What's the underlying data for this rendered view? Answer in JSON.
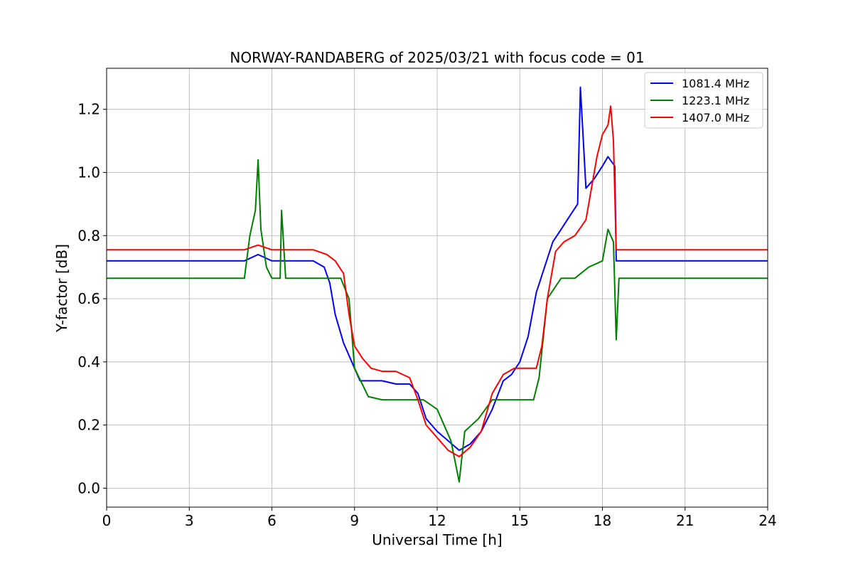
{
  "chart_data": {
    "type": "line",
    "title": "NORWAY-RANDABERG of 2025/03/21 with focus code = 01",
    "xlabel": "Universal Time [h]",
    "ylabel": "Y-factor [dB]",
    "xlim": [
      0,
      24
    ],
    "ylim": [
      -0.06,
      1.33
    ],
    "xticks": [
      0,
      3,
      6,
      9,
      12,
      15,
      18,
      21,
      24
    ],
    "xtick_labels": [
      "0",
      "3",
      "6",
      "9",
      "12",
      "15",
      "18",
      "21",
      "24"
    ],
    "yticks": [
      0.0,
      0.2,
      0.4,
      0.6,
      0.8,
      1.0,
      1.2
    ],
    "ytick_labels": [
      "0.0",
      "0.2",
      "0.4",
      "0.6",
      "0.8",
      "1.0",
      "1.2"
    ],
    "grid": true,
    "legend_position": "top-right",
    "series": [
      {
        "name": "1081.4 MHz",
        "color": "#0000ff",
        "x": [
          0,
          0.5,
          1,
          2,
          3,
          4,
          5,
          5.5,
          6,
          6.5,
          7,
          7.5,
          7.9,
          8.1,
          8.3,
          8.6,
          8.9,
          9.2,
          9.6,
          10,
          10.5,
          11,
          11.3,
          11.6,
          12,
          12.4,
          12.8,
          13.2,
          13.6,
          14,
          14.4,
          14.7,
          15,
          15.3,
          15.6,
          15.9,
          16.2,
          16.5,
          16.8,
          17.1,
          17.2,
          17.4,
          17.7,
          18,
          18.2,
          18.45,
          18.5,
          19,
          20,
          21,
          22,
          23,
          24
        ],
        "y": [
          0.72,
          0.72,
          0.72,
          0.72,
          0.72,
          0.72,
          0.72,
          0.74,
          0.72,
          0.72,
          0.72,
          0.72,
          0.7,
          0.65,
          0.55,
          0.46,
          0.4,
          0.34,
          0.34,
          0.34,
          0.33,
          0.33,
          0.3,
          0.22,
          0.18,
          0.15,
          0.12,
          0.14,
          0.18,
          0.25,
          0.34,
          0.36,
          0.4,
          0.48,
          0.62,
          0.7,
          0.78,
          0.82,
          0.86,
          0.9,
          1.27,
          0.95,
          0.98,
          1.02,
          1.05,
          1.02,
          0.72,
          0.72,
          0.72,
          0.72,
          0.72,
          0.72,
          0.72
        ]
      },
      {
        "name": "1223.1 MHz",
        "color": "#008000",
        "x": [
          0,
          0.5,
          1,
          2,
          3,
          4,
          5,
          5.2,
          5.4,
          5.5,
          5.6,
          5.8,
          6,
          6.3,
          6.35,
          6.5,
          7,
          7.5,
          8,
          8.5,
          8.8,
          9,
          9.5,
          10,
          10.5,
          11,
          11.5,
          12,
          12.5,
          12.8,
          13,
          13.5,
          14,
          14.5,
          15,
          15.5,
          15.7,
          16,
          16.5,
          17,
          17.5,
          18,
          18.2,
          18.4,
          18.5,
          18.6,
          19,
          20,
          21,
          22,
          23,
          24
        ],
        "y": [
          0.665,
          0.665,
          0.665,
          0.665,
          0.665,
          0.665,
          0.665,
          0.8,
          0.88,
          1.04,
          0.82,
          0.7,
          0.665,
          0.665,
          0.88,
          0.665,
          0.665,
          0.665,
          0.665,
          0.665,
          0.6,
          0.38,
          0.29,
          0.28,
          0.28,
          0.28,
          0.28,
          0.25,
          0.15,
          0.02,
          0.18,
          0.22,
          0.28,
          0.28,
          0.28,
          0.28,
          0.35,
          0.6,
          0.665,
          0.665,
          0.7,
          0.72,
          0.82,
          0.78,
          0.47,
          0.665,
          0.665,
          0.665,
          0.665,
          0.665,
          0.665,
          0.665
        ]
      },
      {
        "name": "1407.0 MHz",
        "color": "#ff0000",
        "x": [
          0,
          0.5,
          1,
          2,
          3,
          4,
          5,
          5.5,
          6,
          6.5,
          7,
          7.5,
          8,
          8.3,
          8.6,
          8.8,
          9.0,
          9.3,
          9.6,
          10,
          10.5,
          11,
          11.3,
          11.6,
          12,
          12.4,
          12.8,
          13.2,
          13.6,
          14,
          14.4,
          14.8,
          15.2,
          15.6,
          15.8,
          16,
          16.3,
          16.6,
          17,
          17.4,
          17.8,
          18,
          18.2,
          18.3,
          18.4,
          18.5,
          19,
          20,
          21,
          22,
          23,
          24
        ],
        "y": [
          0.755,
          0.755,
          0.755,
          0.755,
          0.755,
          0.755,
          0.755,
          0.77,
          0.755,
          0.755,
          0.755,
          0.755,
          0.74,
          0.72,
          0.68,
          0.55,
          0.45,
          0.41,
          0.38,
          0.37,
          0.37,
          0.35,
          0.28,
          0.2,
          0.16,
          0.12,
          0.1,
          0.13,
          0.18,
          0.3,
          0.36,
          0.38,
          0.38,
          0.38,
          0.45,
          0.6,
          0.75,
          0.78,
          0.8,
          0.85,
          1.05,
          1.12,
          1.15,
          1.21,
          1.1,
          0.755,
          0.755,
          0.755,
          0.755,
          0.755,
          0.755,
          0.755
        ]
      }
    ]
  }
}
